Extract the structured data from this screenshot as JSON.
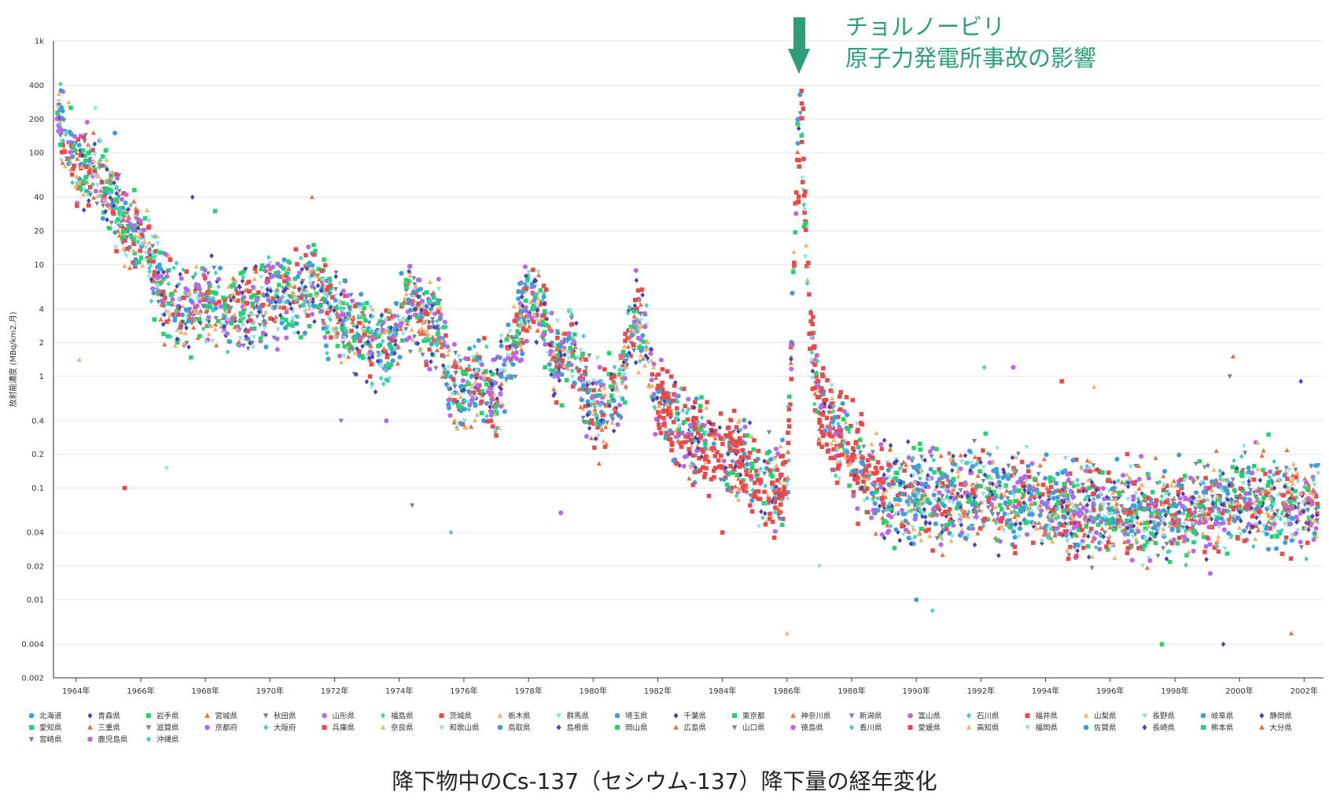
{
  "caption": "降下物中のCs-137（セシウム-137）降下量の経年変化",
  "colors": {
    "annotation": "#2e9e7a",
    "grid": "#e6e6e6",
    "axis": "#333333"
  },
  "annotation": {
    "line1": "チョルノービリ",
    "line2": "原子力発電所事故の影響",
    "x": 1986.5
  },
  "chart_data": {
    "type": "scatter",
    "y_scale": "log",
    "ylabel": "放射能濃度 (MBq/km2.月)",
    "xlabel": "",
    "xlim": [
      1963.3,
      2002.6
    ],
    "ylim": [
      0.002,
      1000
    ],
    "grid": "horizontal",
    "legend_position": "bottom",
    "x_ticks": [
      {
        "value": 1964,
        "label": "1964年"
      },
      {
        "value": 1966,
        "label": "1966年"
      },
      {
        "value": 1968,
        "label": "1968年"
      },
      {
        "value": 1970,
        "label": "1970年"
      },
      {
        "value": 1972,
        "label": "1972年"
      },
      {
        "value": 1974,
        "label": "1974年"
      },
      {
        "value": 1976,
        "label": "1976年"
      },
      {
        "value": 1978,
        "label": "1978年"
      },
      {
        "value": 1980,
        "label": "1980年"
      },
      {
        "value": 1982,
        "label": "1982年"
      },
      {
        "value": 1984,
        "label": "1984年"
      },
      {
        "value": 1986,
        "label": "1986年"
      },
      {
        "value": 1988,
        "label": "1988年"
      },
      {
        "value": 1990,
        "label": "1990年"
      },
      {
        "value": 1992,
        "label": "1992年"
      },
      {
        "value": 1994,
        "label": "1994年"
      },
      {
        "value": 1996,
        "label": "1996年"
      },
      {
        "value": 1998,
        "label": "1998年"
      },
      {
        "value": 2000,
        "label": "2000年"
      },
      {
        "value": 2002,
        "label": "2002年"
      }
    ],
    "y_ticks": [
      {
        "value": 1000,
        "label": "1k"
      },
      {
        "value": 400,
        "label": "400"
      },
      {
        "value": 200,
        "label": "200"
      },
      {
        "value": 100,
        "label": "100"
      },
      {
        "value": 40,
        "label": "40"
      },
      {
        "value": 20,
        "label": "20"
      },
      {
        "value": 10,
        "label": "10"
      },
      {
        "value": 4,
        "label": "4"
      },
      {
        "value": 2,
        "label": "2"
      },
      {
        "value": 1,
        "label": "1"
      },
      {
        "value": 0.4,
        "label": "0.4"
      },
      {
        "value": 0.2,
        "label": "0.2"
      },
      {
        "value": 0.1,
        "label": "0.1"
      },
      {
        "value": 0.04,
        "label": "0.04"
      },
      {
        "value": 0.02,
        "label": "0.02"
      },
      {
        "value": 0.01,
        "label": "0.01"
      },
      {
        "value": 0.004,
        "label": "0.004"
      },
      {
        "value": 0.002,
        "label": "0.002"
      }
    ],
    "trend": [
      [
        1963.4,
        220
      ],
      [
        1963.8,
        110
      ],
      [
        1964.2,
        70
      ],
      [
        1964.6,
        70
      ],
      [
        1965.0,
        40
      ],
      [
        1965.4,
        25
      ],
      [
        1965.8,
        20
      ],
      [
        1966.2,
        12
      ],
      [
        1966.6,
        6
      ],
      [
        1967.0,
        4
      ],
      [
        1967.5,
        4
      ],
      [
        1968.0,
        5
      ],
      [
        1968.5,
        4
      ],
      [
        1969.0,
        4
      ],
      [
        1969.5,
        4
      ],
      [
        1970.0,
        6
      ],
      [
        1970.5,
        5
      ],
      [
        1971.0,
        5
      ],
      [
        1971.4,
        7
      ],
      [
        1971.8,
        4
      ],
      [
        1972.3,
        3
      ],
      [
        1972.8,
        2.5
      ],
      [
        1973.3,
        2
      ],
      [
        1973.8,
        2
      ],
      [
        1974.3,
        5
      ],
      [
        1974.7,
        3
      ],
      [
        1975.2,
        3
      ],
      [
        1975.6,
        0.8
      ],
      [
        1976.0,
        0.7
      ],
      [
        1976.5,
        0.9
      ],
      [
        1977.0,
        0.6
      ],
      [
        1977.5,
        2
      ],
      [
        1978.0,
        5
      ],
      [
        1978.4,
        4
      ],
      [
        1978.8,
        1.2
      ],
      [
        1979.3,
        2
      ],
      [
        1979.8,
        0.7
      ],
      [
        1980.3,
        0.5
      ],
      [
        1980.8,
        0.8
      ],
      [
        1981.3,
        4
      ],
      [
        1981.6,
        2
      ],
      [
        1982.0,
        0.6
      ],
      [
        1982.5,
        0.4
      ],
      [
        1983.0,
        0.3
      ],
      [
        1983.5,
        0.25
      ],
      [
        1984.0,
        0.2
      ],
      [
        1984.5,
        0.18
      ],
      [
        1985.0,
        0.12
      ],
      [
        1985.5,
        0.1
      ],
      [
        1986.0,
        0.1
      ],
      [
        1986.3,
        60
      ],
      [
        1986.45,
        180
      ],
      [
        1986.7,
        3
      ],
      [
        1987.0,
        0.5
      ],
      [
        1987.5,
        0.3
      ],
      [
        1988.0,
        0.2
      ],
      [
        1988.5,
        0.12
      ],
      [
        1989.0,
        0.09
      ],
      [
        1990.0,
        0.08
      ],
      [
        1991.0,
        0.08
      ],
      [
        1992.0,
        0.09
      ],
      [
        1993.0,
        0.08
      ],
      [
        1994.0,
        0.07
      ],
      [
        1995.0,
        0.06
      ],
      [
        1996.0,
        0.06
      ],
      [
        1997.0,
        0.06
      ],
      [
        1998.0,
        0.06
      ],
      [
        1999.0,
        0.06
      ],
      [
        2000.0,
        0.08
      ],
      [
        2001.0,
        0.07
      ],
      [
        2002.0,
        0.07
      ],
      [
        2002.3,
        0.07
      ]
    ],
    "outliers": [
      [
        1986.4,
        330
      ],
      [
        2001.9,
        0.9
      ],
      [
        2000.9,
        0.3
      ],
      [
        1999.8,
        1.5
      ],
      [
        1999.7,
        1.0
      ],
      [
        1993.0,
        1.2
      ],
      [
        1992.1,
        1.2
      ],
      [
        1994.5,
        0.9
      ],
      [
        1995.5,
        0.8
      ],
      [
        1964.6,
        250
      ],
      [
        1965.2,
        150
      ],
      [
        1967.6,
        40
      ],
      [
        1968.3,
        30
      ],
      [
        1971.3,
        40
      ],
      [
        1972.2,
        0.4
      ],
      [
        1973.6,
        0.4
      ],
      [
        1975.6,
        0.04
      ],
      [
        1984.0,
        0.04
      ],
      [
        1986.0,
        0.005
      ],
      [
        1987.0,
        0.02
      ],
      [
        1990.0,
        0.01
      ],
      [
        1999.5,
        0.004
      ],
      [
        1997.6,
        0.004
      ],
      [
        2001.6,
        0.005
      ],
      [
        1974.4,
        0.07
      ],
      [
        1979.0,
        0.06
      ],
      [
        1990.5,
        0.008
      ],
      [
        1965.5,
        0.1
      ],
      [
        1964.1,
        1.4
      ],
      [
        1966.8,
        0.15
      ]
    ],
    "legend": [
      "北海道",
      "青森県",
      "岩手県",
      "宮城県",
      "秋田県",
      "山形県",
      "福島県",
      "茨城県",
      "栃木県",
      "群馬県",
      "埼玉県",
      "千葉県",
      "東京都",
      "神奈川県",
      "新潟県",
      "富山県",
      "石川県",
      "福井県",
      "山梨県",
      "長野県",
      "岐阜県",
      "静岡県",
      "愛知県",
      "三重県",
      "滋賀県",
      "京都府",
      "大阪府",
      "兵庫県",
      "奈良県",
      "和歌山県",
      "鳥取県",
      "島根県",
      "岡山県",
      "広島県",
      "山口県",
      "徳島県",
      "香川県",
      "愛媛県",
      "高知県",
      "福岡県",
      "佐賀県",
      "長崎県",
      "熊本県",
      "大分県",
      "宮崎県",
      "鹿児島県",
      "沖縄県"
    ],
    "palette": [
      {
        "color": "#3a9ee0",
        "marker": "circle"
      },
      {
        "color": "#4a3fb5",
        "marker": "diamond"
      },
      {
        "color": "#1ed66b",
        "marker": "square"
      },
      {
        "color": "#f26b3a",
        "marker": "triangle"
      },
      {
        "color": "#6f84a8",
        "marker": "triangle-down"
      },
      {
        "color": "#b967f0",
        "marker": "circle"
      },
      {
        "color": "#3fd2b5",
        "marker": "diamond"
      },
      {
        "color": "#ec4848",
        "marker": "square"
      },
      {
        "color": "#f2b36b",
        "marker": "triangle"
      },
      {
        "color": "#8fe0e8",
        "marker": "triangle-down"
      }
    ]
  }
}
